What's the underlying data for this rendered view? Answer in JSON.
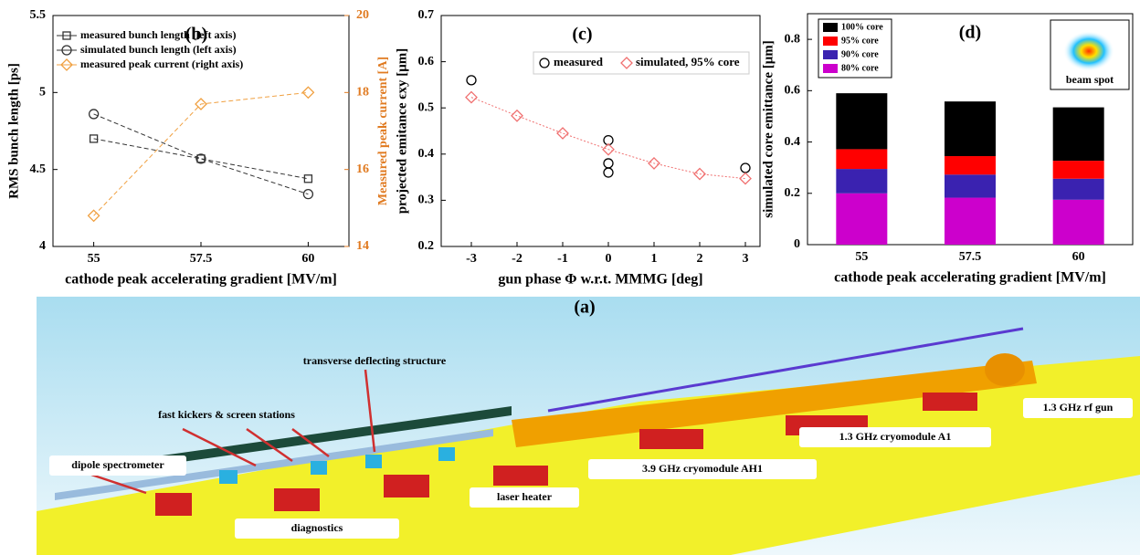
{
  "chart_data": [
    {
      "type": "line",
      "title": "(b)",
      "xlabel": "cathode peak accelerating gradient [MV/m]",
      "ylabel": "RMS bunch length [ps]",
      "y2label": "Measured peak current [A]",
      "y2color": "#e07a20",
      "x": [
        55,
        57.5,
        60
      ],
      "xlim": [
        54.05,
        60.95
      ],
      "xticks": [
        55,
        57.5,
        60
      ],
      "ylim": [
        4,
        5.5
      ],
      "yticks": [
        4,
        4.5,
        5,
        5.5
      ],
      "y2lim": [
        14,
        20
      ],
      "y2ticks": [
        14,
        16,
        18,
        20
      ],
      "legend": "upper-left",
      "series": [
        {
          "name": "measured bunch length (left axis)",
          "color": "#333333",
          "marker": "square",
          "line_style": "dashed",
          "values": [
            4.7,
            4.57,
            4.44
          ]
        },
        {
          "name": "simulated bunch length (left axis)",
          "color": "#333333",
          "marker": "circle",
          "line_style": "dashed",
          "values": [
            4.86,
            4.57,
            4.34
          ]
        },
        {
          "name": "measured peak current (right axis)",
          "color": "#f0a040",
          "marker": "diamond",
          "line_style": "dashed",
          "axis": "y2",
          "values": [
            14.8,
            17.7,
            18.0
          ]
        }
      ]
    },
    {
      "type": "scatter",
      "title": "(c)",
      "xlabel": "gun phase Φ w.r.t. MMMG [deg]",
      "ylabel": "projected emitance ϵxy [μm]",
      "xlim": [
        -3.66,
        3.32
      ],
      "xticks": [
        -3,
        -2,
        -1,
        0,
        1,
        2,
        3
      ],
      "ylim": [
        0.2,
        0.7
      ],
      "yticks": [
        0.2,
        0.3,
        0.4,
        0.5,
        0.6,
        0.7
      ],
      "legend": "upper-right",
      "series": [
        {
          "name": "measured",
          "color": "#000000",
          "marker": "circle",
          "line_style": "none",
          "x": [
            -3,
            0,
            0,
            0,
            3
          ],
          "values": [
            0.56,
            0.43,
            0.38,
            0.36,
            0.37
          ]
        },
        {
          "name": "simulated,  95% core",
          "color": "#f07070",
          "marker": "diamond",
          "line_style": "dotted",
          "x": [
            -3,
            -2,
            -1,
            0,
            1,
            2,
            3
          ],
          "values": [
            0.523,
            0.483,
            0.445,
            0.41,
            0.38,
            0.357,
            0.347
          ]
        }
      ]
    },
    {
      "type": "bar",
      "stacked": true,
      "title": "(d)",
      "xlabel": "cathode peak accelerating gradient [MV/m]",
      "ylabel": "simulated core emittance [μm]",
      "inset": "beam spot",
      "categories": [
        "55",
        "57.5",
        "60"
      ],
      "ylim": [
        0,
        0.9
      ],
      "yticks": [
        0,
        0.2,
        0.4,
        0.6,
        0.8
      ],
      "legend": "upper-left",
      "series": [
        {
          "name": "80% core",
          "color": "#cc00cc",
          "values": [
            0.2,
            0.183,
            0.175
          ]
        },
        {
          "name": "90% core",
          "color": "#3a22b0",
          "values": [
            0.095,
            0.09,
            0.082
          ]
        },
        {
          "name": "95% core",
          "color": "#ff0000",
          "values": [
            0.077,
            0.072,
            0.07
          ]
        },
        {
          "name": "100% core",
          "color": "#000000",
          "values": [
            0.218,
            0.213,
            0.208
          ]
        }
      ]
    }
  ],
  "diagram": {
    "title": "(a)",
    "labels": [
      "transverse deflecting structure",
      "fast kickers & screen stations",
      "dipole spectrometer",
      "diagnostics",
      "laser heater",
      "3.9 GHz cryomodule AH1",
      "1.3 GHz cryomodule A1",
      "1.3 GHz rf gun"
    ]
  }
}
